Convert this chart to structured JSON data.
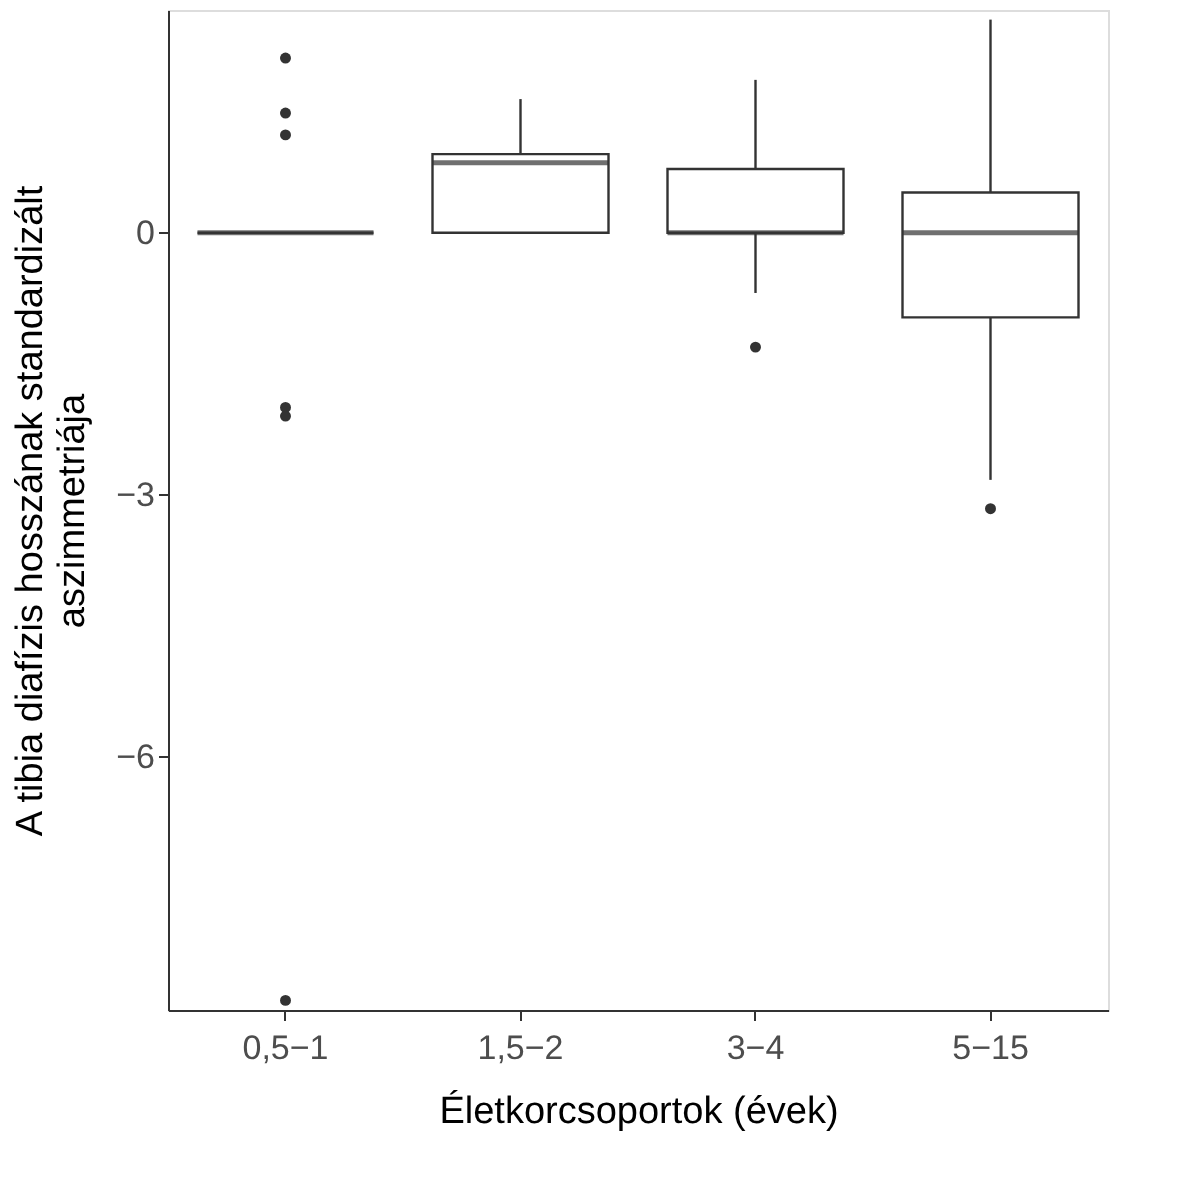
{
  "chart_data": {
    "type": "box",
    "xlabel": "Életkorcsoportok (évek)",
    "ylabel": "A tibia diafízis hosszának standardizált\naszimmetriája",
    "categories": [
      "0,5−1",
      "1,5−2",
      "3−4",
      "5−15"
    ],
    "boxes": [
      {
        "low": 0,
        "q1": 0,
        "median": 0,
        "q3": 0,
        "high": 0,
        "outliers": [
          2.0,
          1.37,
          1.12,
          -2.0,
          -2.1,
          -8.79
        ]
      },
      {
        "low": 0,
        "q1": 0,
        "median": 0.8,
        "q3": 0.9,
        "high": 1.53
      },
      {
        "low": -0.69,
        "q1": 0,
        "median": 0,
        "q3": 0.73,
        "high": 1.75,
        "outliers": [
          -1.31
        ]
      },
      {
        "low": -2.83,
        "q1": -0.97,
        "median": 0,
        "q3": 0.46,
        "high": 2.44,
        "outliers": [
          -3.16
        ]
      }
    ],
    "ylim": [
      -8.9,
      2.55
    ],
    "yticks": [
      {
        "value": 0,
        "label": "0"
      },
      {
        "value": -3,
        "label": "−3"
      },
      {
        "value": -6,
        "label": "−6"
      }
    ],
    "grid": false
  }
}
